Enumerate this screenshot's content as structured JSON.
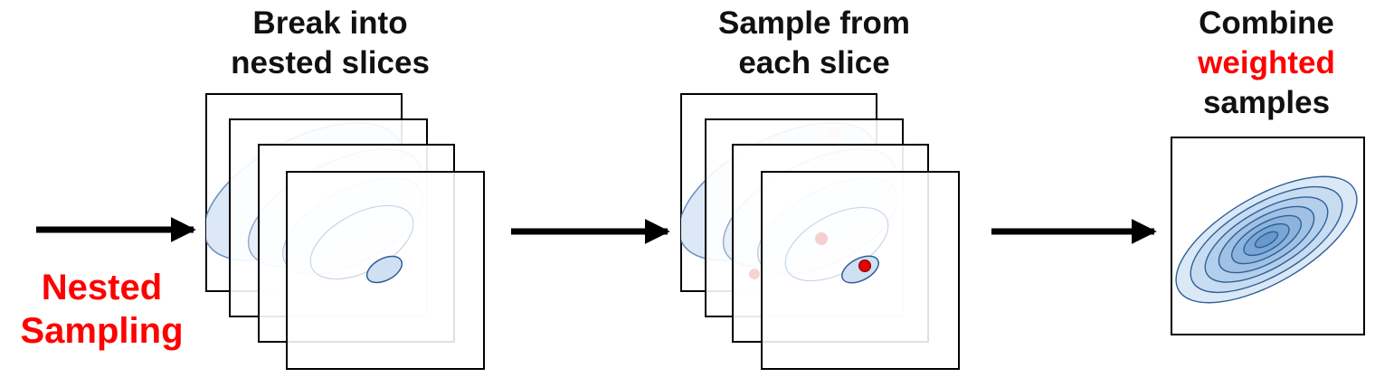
{
  "left_label": {
    "line1": "Nested",
    "line2": "Sampling",
    "color": "#ff0000"
  },
  "step1": {
    "line1": "Break into",
    "line2": "nested slices"
  },
  "step2": {
    "line1": "Sample from",
    "line2": "each slice"
  },
  "step3": {
    "line1": "Combine",
    "line2": "weighted",
    "line3": "samples",
    "highlight_color": "#ff0000"
  },
  "colors": {
    "ellipse_fill": "#cfe0f2",
    "ellipse_stroke": "#2f5f99",
    "sample_point": "#e60000",
    "arrow": "#000000"
  },
  "slices_per_stack": 4
}
